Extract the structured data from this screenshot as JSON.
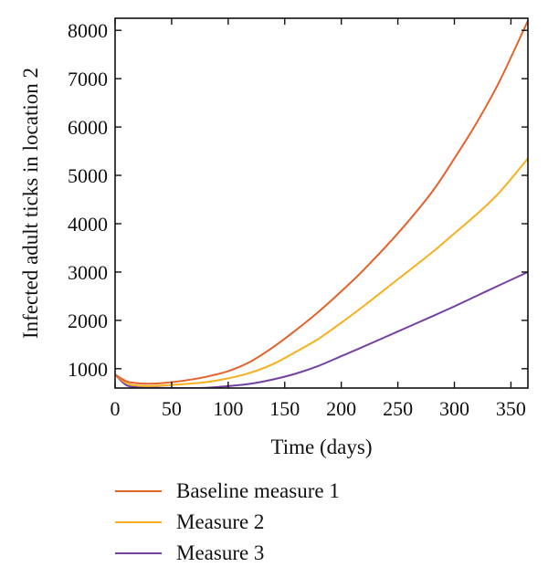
{
  "chart_data": {
    "type": "line",
    "title": "",
    "xlabel": "Time (days)",
    "ylabel": "Infected adult ticks in location 2",
    "xlim": [
      0,
      365
    ],
    "ylim": [
      600,
      8250
    ],
    "xticks": [
      0,
      50,
      100,
      150,
      200,
      250,
      300,
      350
    ],
    "yticks": [
      1000,
      2000,
      3000,
      4000,
      5000,
      6000,
      7000,
      8000
    ],
    "grid": false,
    "legend_position": "bottom",
    "series": [
      {
        "name": "Baseline measure 1",
        "color": "#e4622a",
        "x": [
          0,
          10,
          20,
          30,
          40,
          60,
          80,
          100,
          120,
          140,
          160,
          180,
          200,
          220,
          250,
          280,
          300,
          320,
          340,
          365
        ],
        "y": [
          880,
          740,
          700,
          690,
          700,
          750,
          830,
          950,
          1150,
          1450,
          1800,
          2180,
          2600,
          3050,
          3800,
          4650,
          5350,
          6100,
          6950,
          8200
        ]
      },
      {
        "name": "Measure 2",
        "color": "#f6b01f",
        "x": [
          0,
          10,
          20,
          30,
          40,
          60,
          80,
          100,
          120,
          140,
          160,
          180,
          200,
          220,
          250,
          280,
          300,
          320,
          340,
          365
        ],
        "y": [
          880,
          700,
          650,
          640,
          650,
          680,
          720,
          800,
          920,
          1100,
          1350,
          1620,
          1950,
          2300,
          2850,
          3400,
          3800,
          4200,
          4650,
          5350
        ]
      },
      {
        "name": "Measure 3",
        "color": "#7440a2",
        "x": [
          0,
          10,
          20,
          30,
          40,
          60,
          80,
          100,
          120,
          140,
          160,
          180,
          200,
          220,
          250,
          280,
          300,
          320,
          340,
          365
        ],
        "y": [
          880,
          660,
          620,
          610,
          605,
          600,
          605,
          640,
          690,
          780,
          900,
          1060,
          1260,
          1460,
          1770,
          2080,
          2290,
          2510,
          2730,
          3000
        ]
      }
    ]
  }
}
